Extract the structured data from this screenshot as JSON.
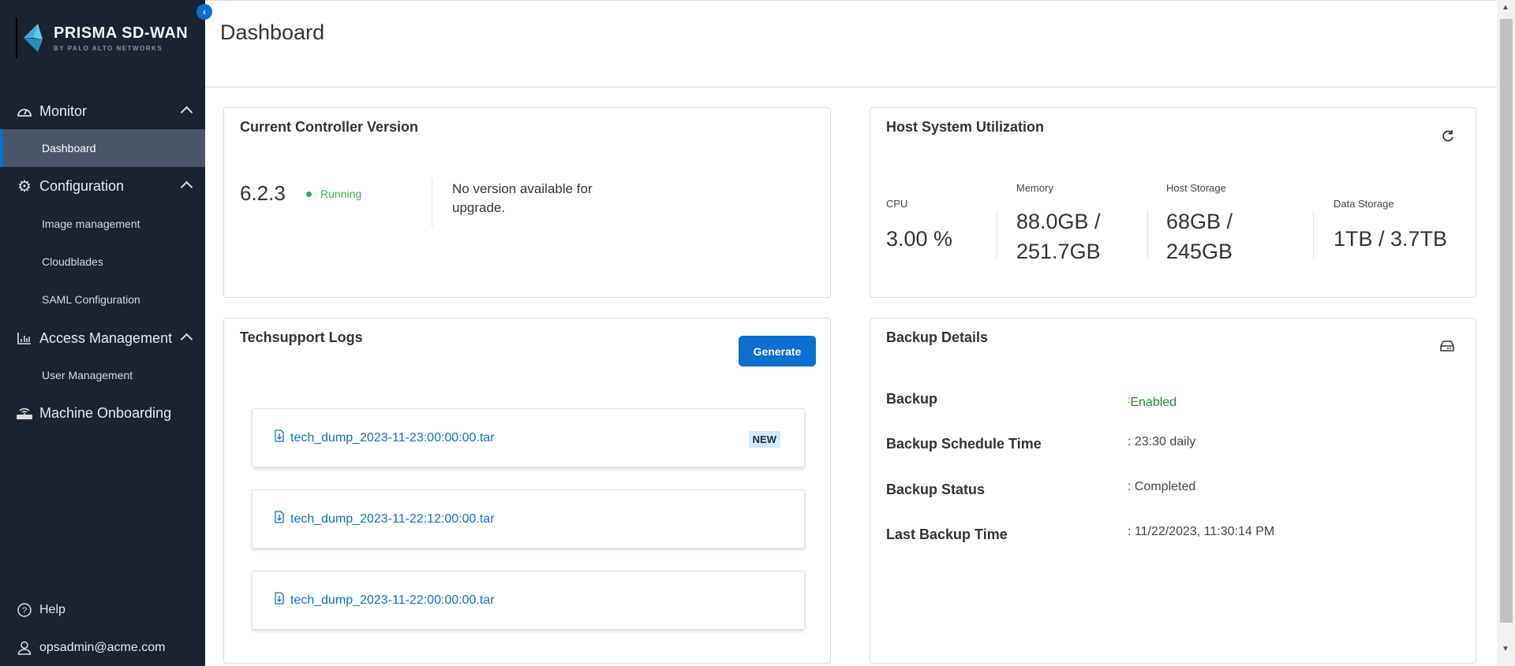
{
  "brand": {
    "name": "PRISMA SD-WAN",
    "tagline": "BY PALO ALTO NETWORKS",
    "accent": "#0a6fd1"
  },
  "sidebar": {
    "sections": [
      {
        "label": "Monitor",
        "icon": "gauge-icon",
        "items": [
          "Dashboard"
        ]
      },
      {
        "label": "Configuration",
        "icon": "gear-icon",
        "items": [
          "Image management",
          "Cloudblades",
          "SAML Configuration"
        ]
      },
      {
        "label": "Access Management",
        "icon": "bar-chart-icon",
        "items": [
          "User Management"
        ]
      },
      {
        "label": "Machine Onboarding",
        "icon": "router-icon",
        "items": []
      }
    ],
    "active": "Dashboard",
    "help": "Help",
    "user": "opsadmin@acme.com"
  },
  "header": {
    "title": "Dashboard"
  },
  "controller": {
    "title": "Current Controller Version",
    "version": "6.2.3",
    "status": "Running",
    "status_color": "#2cb34a",
    "upgrade": "No version available for upgrade."
  },
  "host": {
    "title": "Host System Utilization",
    "metrics": [
      {
        "label": "CPU",
        "value": "3.00 %"
      },
      {
        "label": "Memory",
        "value": "88.0GB / 251.7GB"
      },
      {
        "label": "Host Storage",
        "value": "68GB / 245GB"
      },
      {
        "label": "Data Storage",
        "value": "1TB / 3.7TB"
      }
    ]
  },
  "techsupport": {
    "title": "Techsupport Logs",
    "generate": "Generate",
    "new_badge": "NEW",
    "logs": [
      "tech_dump_2023-11-23:00:00:00.tar",
      "tech_dump_2023-11-22:12:00:00.tar",
      "tech_dump_2023-11-22:00:00:00.tar"
    ]
  },
  "backup": {
    "title": "Backup Details",
    "rows": [
      {
        "label": "Backup",
        "value": "Enabled"
      },
      {
        "label": "Backup Schedule Time",
        "value": ": 23:30 daily"
      },
      {
        "label": "Backup Status",
        "value": ": Completed"
      },
      {
        "label": "Last Backup Time",
        "value": ": 11/22/2023, 11:30:14 PM"
      }
    ]
  }
}
